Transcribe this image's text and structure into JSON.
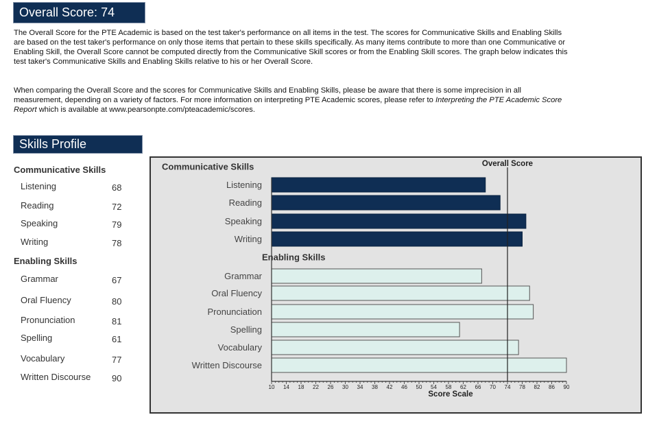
{
  "overall": {
    "label": "Overall Score:",
    "score": "74"
  },
  "intro": {
    "para1": "The Overall Score for the PTE Academic is based on the test taker's performance on all items in the test.  The scores for Communicative Skills and Enabling Skills are based on the test taker's performance on only those items that pertain to these skills specifically.  As many items contribute to more than one Communicative or Enabling Skill, the Overall Score cannot be computed directly from the Communicative Skill scores or from the Enabling Skill scores.  The graph below indicates this test taker's Communicative Skills and Enabling Skills relative to his or her Overall Score.",
    "para2_start": "When comparing the Overall Score and the scores for Communicative Skills and Enabling Skills, please be aware that there is some imprecision in all measurement, depending on a variety of factors.  For more information on interpreting PTE Academic scores, please refer to ",
    "para2_italic": "Interpreting the PTE Academic Score Report",
    "para2_end": " which is available at www.pearsonpte.com/pteacademic/scores."
  },
  "profile": {
    "title": "Skills Profile",
    "communicative_heading": "Communicative Skills",
    "enabling_heading": "Enabling Skills",
    "communicative": [
      {
        "label": "Listening",
        "value": "68"
      },
      {
        "label": "Reading",
        "value": "72"
      },
      {
        "label": "Speaking",
        "value": "79"
      },
      {
        "label": "Writing",
        "value": "78"
      }
    ],
    "enabling": [
      {
        "label": "Grammar",
        "value": "67"
      },
      {
        "label": "Oral Fluency",
        "value": "80"
      },
      {
        "label": "Pronunciation",
        "value": "81"
      },
      {
        "label": "Spelling",
        "value": "61"
      },
      {
        "label": "Vocabulary",
        "value": "77"
      },
      {
        "label": "Written Discourse",
        "value": "90"
      }
    ]
  },
  "chart_data": {
    "type": "bar",
    "orientation": "horizontal",
    "xlabel": "Score Scale",
    "xlim": [
      10,
      90
    ],
    "xticks": [
      10,
      14,
      18,
      22,
      26,
      30,
      34,
      38,
      42,
      46,
      50,
      54,
      58,
      62,
      66,
      70,
      74,
      78,
      82,
      86,
      90
    ],
    "reference_line": {
      "label": "Overall Score",
      "value": 74
    },
    "groups": [
      {
        "name": "Communicative Skills",
        "color": "#0f2e54",
        "categories": [
          "Listening",
          "Reading",
          "Speaking",
          "Writing"
        ],
        "values": [
          68,
          72,
          79,
          78
        ]
      },
      {
        "name": "Enabling Skills",
        "color": "#ddf0ec",
        "categories": [
          "Grammar",
          "Oral Fluency",
          "Pronunciation",
          "Spelling",
          "Vocabulary",
          "Written Discourse"
        ],
        "values": [
          67,
          80,
          81,
          61,
          77,
          90
        ]
      }
    ]
  }
}
